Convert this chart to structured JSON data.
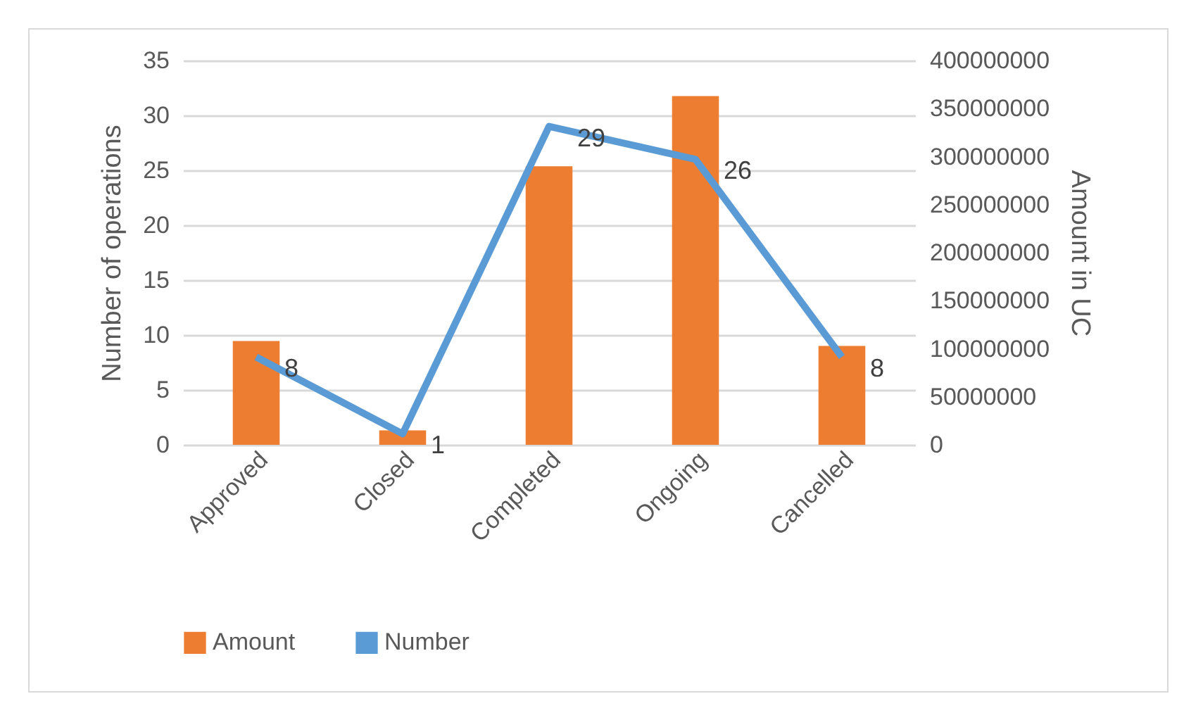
{
  "chart_data": {
    "type": "bar",
    "categories": [
      "Approved",
      "Closed",
      "Completed",
      "Ongoing",
      "Cancelled"
    ],
    "series": [
      {
        "name": "Amount",
        "axis": "y2",
        "color": "#ed7d31",
        "values": [
          108000000,
          15000000,
          290000000,
          363000000,
          103000000
        ]
      },
      {
        "name": "Number",
        "type": "line",
        "color": "#5b9bd5",
        "values": [
          8,
          1,
          29,
          26,
          8
        ],
        "value_labels": [
          "8",
          "1",
          "29",
          "26",
          "8"
        ]
      }
    ],
    "ylabel": "Number of operations",
    "y2label": "Amount in UC",
    "ylim": [
      0,
      35
    ],
    "yticks": [
      0,
      5,
      10,
      15,
      20,
      25,
      30,
      35
    ],
    "y2lim": [
      0,
      400000000
    ],
    "y2ticks": [
      0,
      50000000,
      100000000,
      150000000,
      200000000,
      250000000,
      300000000,
      350000000,
      400000000
    ],
    "grid": "y",
    "legend": "bottom",
    "marker": "none",
    "line_style": "solid"
  }
}
